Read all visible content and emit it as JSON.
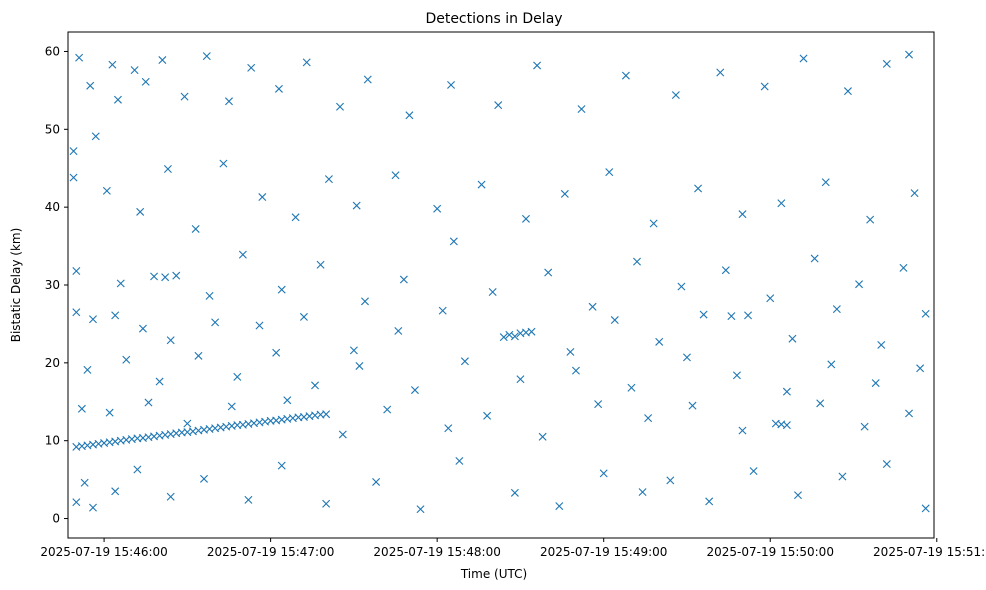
{
  "chart_data": {
    "type": "scatter",
    "title": "Detections in Delay",
    "xlabel": "Time (UTC)",
    "ylabel": "Bistatic Delay (km)",
    "marker": "x",
    "color": "#1f77b4",
    "grid": false,
    "legend": "none",
    "xlim": [
      "2025-07-19 15:45:47",
      "2025-07-19 15:50:59"
    ],
    "ylim": [
      -2.5,
      62.5
    ],
    "x_ticks": [
      "2025-07-19 15:46:00",
      "2025-07-19 15:47:00",
      "2025-07-19 15:48:00",
      "2025-07-19 15:49:00",
      "2025-07-19 15:50:00",
      "2025-07-19 15:51:00"
    ],
    "y_ticks": [
      0,
      10,
      20,
      30,
      40,
      50,
      60
    ],
    "series": [
      {
        "name": "",
        "points": [
          [
            "2025-07-19 15:45:50",
            9.2
          ],
          [
            "2025-07-19 15:45:52",
            9.3
          ],
          [
            "2025-07-19 15:45:54",
            9.4
          ],
          [
            "2025-07-19 15:45:56",
            9.5
          ],
          [
            "2025-07-19 15:45:58",
            9.6
          ],
          [
            "2025-07-19 15:46:00",
            9.7
          ],
          [
            "2025-07-19 15:46:02",
            9.8
          ],
          [
            "2025-07-19 15:46:04",
            9.9
          ],
          [
            "2025-07-19 15:46:06",
            10.0
          ],
          [
            "2025-07-19 15:46:08",
            10.1
          ],
          [
            "2025-07-19 15:46:10",
            10.2
          ],
          [
            "2025-07-19 15:46:12",
            10.3
          ],
          [
            "2025-07-19 15:46:14",
            10.35
          ],
          [
            "2025-07-19 15:46:16",
            10.45
          ],
          [
            "2025-07-19 15:46:18",
            10.55
          ],
          [
            "2025-07-19 15:46:20",
            10.65
          ],
          [
            "2025-07-19 15:46:22",
            10.75
          ],
          [
            "2025-07-19 15:46:24",
            10.85
          ],
          [
            "2025-07-19 15:46:26",
            10.95
          ],
          [
            "2025-07-19 15:46:28",
            11.05
          ],
          [
            "2025-07-19 15:46:30",
            11.1
          ],
          [
            "2025-07-19 15:46:32",
            11.2
          ],
          [
            "2025-07-19 15:46:34",
            11.3
          ],
          [
            "2025-07-19 15:46:36",
            11.4
          ],
          [
            "2025-07-19 15:46:38",
            11.5
          ],
          [
            "2025-07-19 15:46:40",
            11.6
          ],
          [
            "2025-07-19 15:46:42",
            11.7
          ],
          [
            "2025-07-19 15:46:44",
            11.8
          ],
          [
            "2025-07-19 15:46:46",
            11.9
          ],
          [
            "2025-07-19 15:46:48",
            12.0
          ],
          [
            "2025-07-19 15:46:50",
            12.05
          ],
          [
            "2025-07-19 15:46:52",
            12.15
          ],
          [
            "2025-07-19 15:46:54",
            12.25
          ],
          [
            "2025-07-19 15:46:56",
            12.35
          ],
          [
            "2025-07-19 15:46:58",
            12.45
          ],
          [
            "2025-07-19 15:47:00",
            12.55
          ],
          [
            "2025-07-19 15:47:02",
            12.6
          ],
          [
            "2025-07-19 15:47:04",
            12.7
          ],
          [
            "2025-07-19 15:47:06",
            12.8
          ],
          [
            "2025-07-19 15:47:08",
            12.9
          ],
          [
            "2025-07-19 15:47:10",
            13.0
          ],
          [
            "2025-07-19 15:47:12",
            13.05
          ],
          [
            "2025-07-19 15:47:14",
            13.15
          ],
          [
            "2025-07-19 15:47:16",
            13.25
          ],
          [
            "2025-07-19 15:47:18",
            13.35
          ],
          [
            "2025-07-19 15:47:20",
            13.4
          ],
          [
            "2025-07-19 15:45:49",
            47.2
          ],
          [
            "2025-07-19 15:45:51",
            59.2
          ],
          [
            "2025-07-19 15:45:55",
            55.6
          ],
          [
            "2025-07-19 15:45:57",
            49.1
          ],
          [
            "2025-07-19 15:46:03",
            58.3
          ],
          [
            "2025-07-19 15:46:05",
            53.8
          ],
          [
            "2025-07-19 15:46:11",
            57.6
          ],
          [
            "2025-07-19 15:46:15",
            56.1
          ],
          [
            "2025-07-19 15:46:21",
            58.9
          ],
          [
            "2025-07-19 15:46:29",
            54.2
          ],
          [
            "2025-07-19 15:46:37",
            59.4
          ],
          [
            "2025-07-19 15:46:45",
            53.6
          ],
          [
            "2025-07-19 15:46:53",
            57.9
          ],
          [
            "2025-07-19 15:47:03",
            55.2
          ],
          [
            "2025-07-19 15:47:13",
            58.6
          ],
          [
            "2025-07-19 15:47:25",
            52.9
          ],
          [
            "2025-07-19 15:47:35",
            56.4
          ],
          [
            "2025-07-19 15:47:50",
            51.8
          ],
          [
            "2025-07-19 15:48:05",
            55.7
          ],
          [
            "2025-07-19 15:48:22",
            53.1
          ],
          [
            "2025-07-19 15:48:36",
            58.2
          ],
          [
            "2025-07-19 15:48:52",
            52.6
          ],
          [
            "2025-07-19 15:49:08",
            56.9
          ],
          [
            "2025-07-19 15:49:26",
            54.4
          ],
          [
            "2025-07-19 15:49:42",
            57.3
          ],
          [
            "2025-07-19 15:49:58",
            55.5
          ],
          [
            "2025-07-19 15:50:12",
            59.1
          ],
          [
            "2025-07-19 15:50:28",
            54.9
          ],
          [
            "2025-07-19 15:50:42",
            58.4
          ],
          [
            "2025-07-19 15:50:50",
            59.6
          ],
          [
            "2025-07-19 15:45:49",
            43.8
          ],
          [
            "2025-07-19 15:46:01",
            42.1
          ],
          [
            "2025-07-19 15:46:13",
            39.4
          ],
          [
            "2025-07-19 15:46:23",
            44.9
          ],
          [
            "2025-07-19 15:46:33",
            37.2
          ],
          [
            "2025-07-19 15:46:43",
            45.6
          ],
          [
            "2025-07-19 15:46:57",
            41.3
          ],
          [
            "2025-07-19 15:47:09",
            38.7
          ],
          [
            "2025-07-19 15:47:21",
            43.6
          ],
          [
            "2025-07-19 15:47:31",
            40.2
          ],
          [
            "2025-07-19 15:47:45",
            44.1
          ],
          [
            "2025-07-19 15:48:00",
            39.8
          ],
          [
            "2025-07-19 15:48:16",
            42.9
          ],
          [
            "2025-07-19 15:48:32",
            38.5
          ],
          [
            "2025-07-19 15:48:46",
            41.7
          ],
          [
            "2025-07-19 15:49:02",
            44.5
          ],
          [
            "2025-07-19 15:49:18",
            37.9
          ],
          [
            "2025-07-19 15:49:34",
            42.4
          ],
          [
            "2025-07-19 15:49:50",
            39.1
          ],
          [
            "2025-07-19 15:50:04",
            40.5
          ],
          [
            "2025-07-19 15:50:20",
            43.2
          ],
          [
            "2025-07-19 15:50:36",
            38.4
          ],
          [
            "2025-07-19 15:50:52",
            41.8
          ],
          [
            "2025-07-19 15:45:50",
            31.8
          ],
          [
            "2025-07-19 15:46:06",
            30.2
          ],
          [
            "2025-07-19 15:46:18",
            31.1
          ],
          [
            "2025-07-19 15:46:22",
            31.0
          ],
          [
            "2025-07-19 15:46:26",
            31.2
          ],
          [
            "2025-07-19 15:46:38",
            28.6
          ],
          [
            "2025-07-19 15:46:50",
            33.9
          ],
          [
            "2025-07-19 15:47:04",
            29.4
          ],
          [
            "2025-07-19 15:47:18",
            32.6
          ],
          [
            "2025-07-19 15:47:34",
            27.9
          ],
          [
            "2025-07-19 15:47:48",
            30.7
          ],
          [
            "2025-07-19 15:48:06",
            35.6
          ],
          [
            "2025-07-19 15:48:20",
            29.1
          ],
          [
            "2025-07-19 15:48:40",
            31.6
          ],
          [
            "2025-07-19 15:48:56",
            27.2
          ],
          [
            "2025-07-19 15:49:12",
            33.0
          ],
          [
            "2025-07-19 15:49:28",
            29.8
          ],
          [
            "2025-07-19 15:49:44",
            31.9
          ],
          [
            "2025-07-19 15:50:00",
            28.3
          ],
          [
            "2025-07-19 15:50:16",
            33.4
          ],
          [
            "2025-07-19 15:50:32",
            30.1
          ],
          [
            "2025-07-19 15:50:48",
            32.2
          ],
          [
            "2025-07-19 15:45:50",
            26.5
          ],
          [
            "2025-07-19 15:45:56",
            25.6
          ],
          [
            "2025-07-19 15:46:04",
            26.1
          ],
          [
            "2025-07-19 15:46:14",
            24.4
          ],
          [
            "2025-07-19 15:46:24",
            22.9
          ],
          [
            "2025-07-19 15:46:40",
            25.2
          ],
          [
            "2025-07-19 15:46:56",
            24.8
          ],
          [
            "2025-07-19 15:47:12",
            25.9
          ],
          [
            "2025-07-19 15:47:30",
            21.6
          ],
          [
            "2025-07-19 15:47:46",
            24.1
          ],
          [
            "2025-07-19 15:48:02",
            26.7
          ],
          [
            "2025-07-19 15:48:24",
            23.3
          ],
          [
            "2025-07-19 15:48:26",
            23.6
          ],
          [
            "2025-07-19 15:48:28",
            23.4
          ],
          [
            "2025-07-19 15:48:30",
            23.8
          ],
          [
            "2025-07-19 15:48:32",
            23.9
          ],
          [
            "2025-07-19 15:48:34",
            24.0
          ],
          [
            "2025-07-19 15:48:48",
            21.4
          ],
          [
            "2025-07-19 15:49:04",
            25.5
          ],
          [
            "2025-07-19 15:49:20",
            22.7
          ],
          [
            "2025-07-19 15:49:36",
            26.2
          ],
          [
            "2025-07-19 15:49:46",
            26.0
          ],
          [
            "2025-07-19 15:49:52",
            26.1
          ],
          [
            "2025-07-19 15:50:08",
            23.1
          ],
          [
            "2025-07-19 15:50:24",
            26.9
          ],
          [
            "2025-07-19 15:50:40",
            22.3
          ],
          [
            "2025-07-19 15:50:56",
            26.3
          ],
          [
            "2025-07-19 15:45:54",
            19.1
          ],
          [
            "2025-07-19 15:46:08",
            20.4
          ],
          [
            "2025-07-19 15:46:20",
            17.6
          ],
          [
            "2025-07-19 15:46:34",
            20.9
          ],
          [
            "2025-07-19 15:46:48",
            18.2
          ],
          [
            "2025-07-19 15:47:02",
            21.3
          ],
          [
            "2025-07-19 15:47:16",
            17.1
          ],
          [
            "2025-07-19 15:47:32",
            19.6
          ],
          [
            "2025-07-19 15:47:52",
            16.5
          ],
          [
            "2025-07-19 15:48:10",
            20.2
          ],
          [
            "2025-07-19 15:48:30",
            17.9
          ],
          [
            "2025-07-19 15:48:50",
            19.0
          ],
          [
            "2025-07-19 15:49:10",
            16.8
          ],
          [
            "2025-07-19 15:49:30",
            20.7
          ],
          [
            "2025-07-19 15:49:48",
            18.4
          ],
          [
            "2025-07-19 15:50:06",
            16.3
          ],
          [
            "2025-07-19 15:50:22",
            19.8
          ],
          [
            "2025-07-19 15:50:38",
            17.4
          ],
          [
            "2025-07-19 15:50:54",
            19.3
          ],
          [
            "2025-07-19 15:45:52",
            14.1
          ],
          [
            "2025-07-19 15:46:02",
            13.6
          ],
          [
            "2025-07-19 15:46:16",
            14.9
          ],
          [
            "2025-07-19 15:46:30",
            12.2
          ],
          [
            "2025-07-19 15:46:46",
            14.4
          ],
          [
            "2025-07-19 15:47:06",
            15.2
          ],
          [
            "2025-07-19 15:47:26",
            10.8
          ],
          [
            "2025-07-19 15:47:42",
            14.0
          ],
          [
            "2025-07-19 15:48:04",
            11.6
          ],
          [
            "2025-07-19 15:48:18",
            13.2
          ],
          [
            "2025-07-19 15:48:38",
            10.5
          ],
          [
            "2025-07-19 15:48:58",
            14.7
          ],
          [
            "2025-07-19 15:49:16",
            12.9
          ],
          [
            "2025-07-19 15:49:32",
            14.5
          ],
          [
            "2025-07-19 15:49:50",
            11.3
          ],
          [
            "2025-07-19 15:50:02",
            12.2
          ],
          [
            "2025-07-19 15:50:04",
            12.1
          ],
          [
            "2025-07-19 15:50:06",
            12.0
          ],
          [
            "2025-07-19 15:50:18",
            14.8
          ],
          [
            "2025-07-19 15:50:34",
            11.8
          ],
          [
            "2025-07-19 15:50:50",
            13.5
          ],
          [
            "2025-07-19 15:45:50",
            2.1
          ],
          [
            "2025-07-19 15:45:53",
            4.6
          ],
          [
            "2025-07-19 15:45:56",
            1.4
          ],
          [
            "2025-07-19 15:46:04",
            3.5
          ],
          [
            "2025-07-19 15:46:12",
            6.3
          ],
          [
            "2025-07-19 15:46:24",
            2.8
          ],
          [
            "2025-07-19 15:46:36",
            5.1
          ],
          [
            "2025-07-19 15:46:52",
            2.4
          ],
          [
            "2025-07-19 15:47:04",
            6.8
          ],
          [
            "2025-07-19 15:47:20",
            1.9
          ],
          [
            "2025-07-19 15:47:38",
            4.7
          ],
          [
            "2025-07-19 15:47:54",
            1.2
          ],
          [
            "2025-07-19 15:48:08",
            7.4
          ],
          [
            "2025-07-19 15:48:28",
            3.3
          ],
          [
            "2025-07-19 15:48:44",
            1.6
          ],
          [
            "2025-07-19 15:49:00",
            5.8
          ],
          [
            "2025-07-19 15:49:14",
            3.4
          ],
          [
            "2025-07-19 15:49:24",
            4.9
          ],
          [
            "2025-07-19 15:49:38",
            2.2
          ],
          [
            "2025-07-19 15:49:54",
            6.1
          ],
          [
            "2025-07-19 15:50:10",
            3.0
          ],
          [
            "2025-07-19 15:50:26",
            5.4
          ],
          [
            "2025-07-19 15:50:42",
            7.0
          ],
          [
            "2025-07-19 15:50:56",
            1.3
          ]
        ]
      }
    ]
  }
}
